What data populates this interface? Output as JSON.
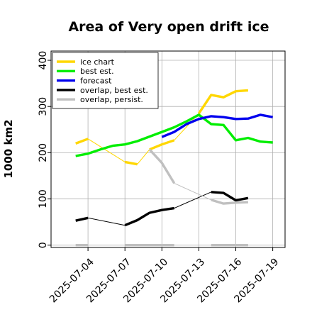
{
  "chart_data": {
    "type": "line",
    "title": "Area of Very open drift ice",
    "ylabel": "1000 km2",
    "xlabel": "",
    "ylim": [
      -5,
      420
    ],
    "xlim": [
      "2025-07-01",
      "2025-07-20"
    ],
    "yticks": [
      0,
      100,
      200,
      300,
      400
    ],
    "xticks": [
      "2025-07-04",
      "2025-07-07",
      "2025-07-10",
      "2025-07-13",
      "2025-07-16",
      "2025-07-19"
    ],
    "highlight_xtick": "2025-07-10",
    "highlight_color": "#228b22",
    "legend_position": "top-left",
    "series": [
      {
        "name": "ice chart",
        "color": "#ffd700",
        "segments": [
          {
            "x": [
              "2025-07-03",
              "2025-07-04"
            ],
            "y": [
              220,
              230
            ]
          },
          {
            "x": [
              "2025-07-04",
              "2025-07-07"
            ],
            "y": [
              230,
              180
            ],
            "thin": true
          },
          {
            "x": [
              "2025-07-07",
              "2025-07-08"
            ],
            "y": [
              180,
              175
            ]
          },
          {
            "x": [
              "2025-07-08",
              "2025-07-09"
            ],
            "y": [
              175,
              207
            ],
            "thin": true
          },
          {
            "x": [
              "2025-07-09",
              "2025-07-10",
              "2025-07-11"
            ],
            "y": [
              207,
              218,
              227
            ]
          },
          {
            "x": [
              "2025-07-11",
              "2025-07-13"
            ],
            "y": [
              227,
              285
            ],
            "thin": true
          },
          {
            "x": [
              "2025-07-13",
              "2025-07-14",
              "2025-07-15",
              "2025-07-16",
              "2025-07-17"
            ],
            "y": [
              285,
              325,
              320,
              333,
              335
            ]
          }
        ]
      },
      {
        "name": "best est.",
        "color": "#00ee00",
        "segments": [
          {
            "x": [
              "2025-07-03",
              "2025-07-04",
              "2025-07-05",
              "2025-07-06",
              "2025-07-07",
              "2025-07-08",
              "2025-07-09",
              "2025-07-10",
              "2025-07-11",
              "2025-07-12",
              "2025-07-13",
              "2025-07-14",
              "2025-07-15",
              "2025-07-16",
              "2025-07-17",
              "2025-07-18",
              "2025-07-19"
            ],
            "y": [
              193,
              198,
              207,
              215,
              218,
              225,
              235,
              245,
              255,
              268,
              282,
              262,
              260,
              227,
              232,
              224,
              222
            ]
          }
        ]
      },
      {
        "name": "forecast",
        "color": "#0000ee",
        "segments": [
          {
            "x": [
              "2025-07-10",
              "2025-07-11",
              "2025-07-12",
              "2025-07-13",
              "2025-07-14",
              "2025-07-15",
              "2025-07-16",
              "2025-07-17",
              "2025-07-18",
              "2025-07-19"
            ],
            "y": [
              234,
              245,
              262,
              273,
              279,
              277,
              273,
              274,
              282,
              277
            ]
          }
        ]
      },
      {
        "name": "overlap, best est.",
        "color": "#000000",
        "segments": [
          {
            "x": [
              "2025-07-03",
              "2025-07-04"
            ],
            "y": [
              53,
              59
            ]
          },
          {
            "x": [
              "2025-07-04",
              "2025-07-07"
            ],
            "y": [
              59,
              43
            ],
            "thin": true
          },
          {
            "x": [
              "2025-07-07",
              "2025-07-08",
              "2025-07-09",
              "2025-07-10",
              "2025-07-11"
            ],
            "y": [
              43,
              54,
              70,
              76,
              80
            ]
          },
          {
            "x": [
              "2025-07-11",
              "2025-07-14"
            ],
            "y": [
              80,
              115
            ],
            "thin": true
          },
          {
            "x": [
              "2025-07-14",
              "2025-07-15",
              "2025-07-16",
              "2025-07-17"
            ],
            "y": [
              115,
              113,
              97,
              102
            ]
          }
        ]
      },
      {
        "name": "overlap, persist.",
        "color": "#c0c0c0",
        "segments": [
          {
            "x": [
              "2025-07-03",
              "2025-07-04"
            ],
            "y": [
              0,
              0
            ]
          },
          {
            "x": [
              "2025-07-07",
              "2025-07-11"
            ],
            "y": [
              0,
              0
            ]
          },
          {
            "x": [
              "2025-07-09",
              "2025-07-10",
              "2025-07-11"
            ],
            "y": [
              207,
              178,
              134
            ]
          },
          {
            "x": [
              "2025-07-11",
              "2025-07-14"
            ],
            "y": [
              134,
              98
            ],
            "thin": true
          },
          {
            "x": [
              "2025-07-14",
              "2025-07-15",
              "2025-07-16",
              "2025-07-17"
            ],
            "y": [
              98,
              90,
              92,
              93
            ]
          },
          {
            "x": [
              "2025-07-14",
              "2025-07-17"
            ],
            "y": [
              0,
              0
            ]
          }
        ]
      }
    ]
  }
}
